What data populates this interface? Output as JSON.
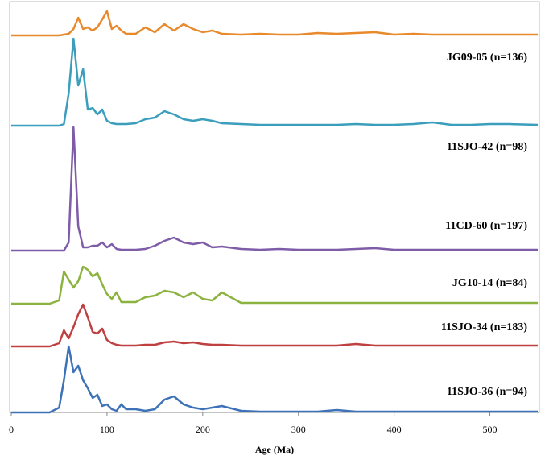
{
  "chart_data": {
    "type": "line",
    "xlabel": "Age (Ma)",
    "xlim": [
      0,
      550
    ],
    "xticks": [
      0,
      100,
      200,
      300,
      400,
      500
    ],
    "ylim": [
      0,
      160
    ],
    "x": [
      0,
      40,
      50,
      55,
      60,
      65,
      70,
      75,
      80,
      85,
      90,
      95,
      100,
      105,
      110,
      115,
      120,
      130,
      140,
      150,
      160,
      170,
      180,
      190,
      200,
      210,
      220,
      240,
      260,
      280,
      300,
      320,
      340,
      360,
      380,
      400,
      420,
      440,
      460,
      480,
      500,
      520,
      550
    ],
    "series": [
      {
        "name": "JG09-05 (n=136)",
        "color": "#e8892b",
        "values": [
          0,
          0,
          0,
          1,
          2,
          8,
          22,
          8,
          10,
          6,
          10,
          20,
          30,
          8,
          12,
          6,
          2,
          2,
          10,
          4,
          14,
          6,
          14,
          8,
          4,
          6,
          2,
          1,
          2,
          1,
          1,
          3,
          2,
          3,
          4,
          1,
          2,
          1,
          1,
          1,
          1,
          1,
          1
        ]
      },
      {
        "name": "11SJO-42 (n=98)",
        "color": "#3a9ebc",
        "values": [
          0,
          0,
          0,
          2,
          40,
          108,
          50,
          70,
          20,
          22,
          14,
          20,
          6,
          3,
          2,
          2,
          2,
          3,
          8,
          10,
          18,
          14,
          8,
          6,
          8,
          6,
          3,
          2,
          1,
          1,
          1,
          1,
          1,
          2,
          1,
          1,
          2,
          4,
          1,
          1,
          2,
          2,
          1
        ]
      },
      {
        "name": "11CD-60 (n=197)",
        "color": "#7e5ca8",
        "values": [
          0,
          0,
          0,
          0,
          10,
          153,
          30,
          4,
          4,
          6,
          6,
          10,
          4,
          8,
          2,
          1,
          1,
          1,
          2,
          6,
          12,
          16,
          10,
          8,
          10,
          4,
          5,
          2,
          1,
          2,
          1,
          1,
          1,
          2,
          3,
          1,
          1,
          1,
          1,
          1,
          1,
          1,
          1
        ]
      },
      {
        "name": "JG10-14 (n=84)",
        "color": "#8cb23f",
        "values": [
          0,
          0,
          4,
          40,
          30,
          20,
          28,
          46,
          42,
          34,
          38,
          24,
          12,
          6,
          14,
          2,
          2,
          2,
          8,
          10,
          16,
          14,
          8,
          14,
          6,
          4,
          14,
          1,
          1,
          1,
          1,
          1,
          1,
          1,
          1,
          1,
          1,
          1,
          1,
          1,
          1,
          1,
          1
        ]
      },
      {
        "name": "11SJO-34 (n=183)",
        "color": "#bf4040",
        "values": [
          0,
          0,
          4,
          20,
          10,
          24,
          40,
          52,
          36,
          18,
          16,
          22,
          8,
          4,
          2,
          1,
          1,
          1,
          2,
          2,
          5,
          6,
          4,
          5,
          3,
          2,
          2,
          1,
          1,
          1,
          1,
          1,
          1,
          3,
          1,
          1,
          1,
          1,
          1,
          1,
          1,
          1,
          1
        ]
      },
      {
        "name": "11SJO-36 (n=94)",
        "color": "#3d72b8",
        "values": [
          0,
          0,
          6,
          40,
          82,
          50,
          58,
          40,
          30,
          18,
          22,
          8,
          10,
          4,
          2,
          10,
          4,
          4,
          2,
          4,
          16,
          20,
          10,
          6,
          4,
          6,
          8,
          2,
          1,
          1,
          1,
          1,
          3,
          1,
          1,
          1,
          1,
          1,
          1,
          1,
          1,
          1,
          1
        ]
      }
    ]
  }
}
